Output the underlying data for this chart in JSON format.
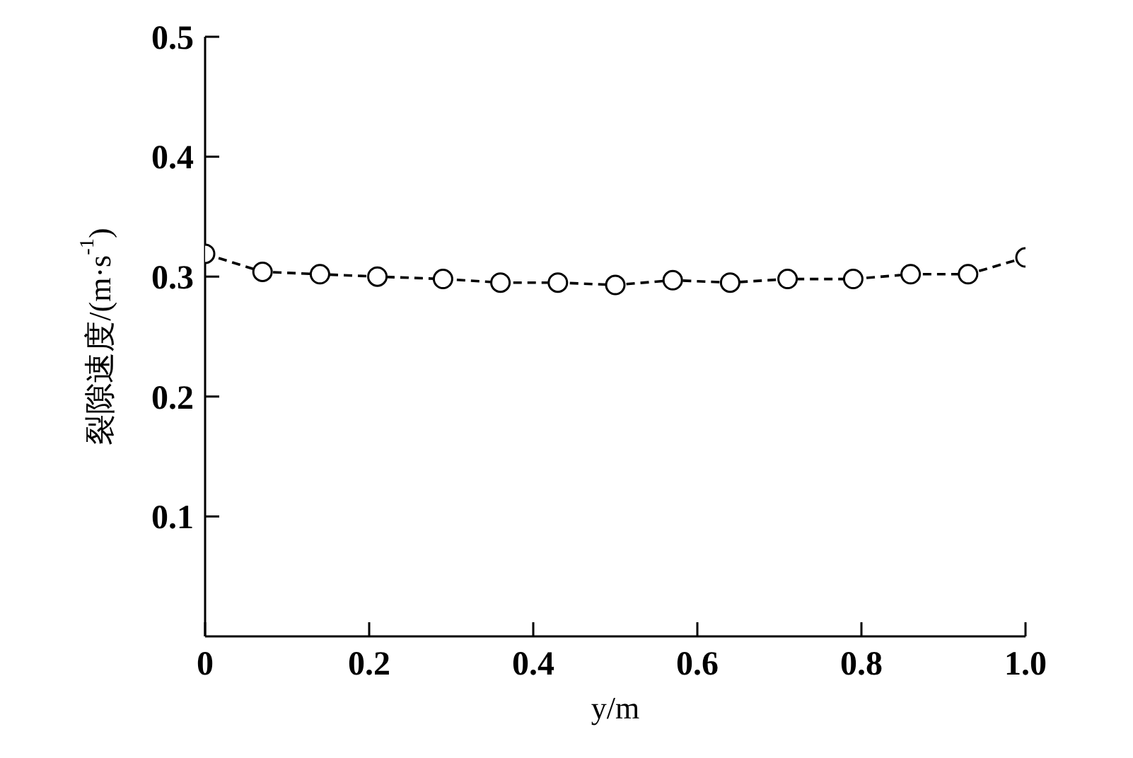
{
  "chart_data": {
    "type": "line",
    "xlabel": "y/m",
    "ylabel": "裂隙速度/(m·s$^{-1}$)",
    "x": [
      0,
      0.07,
      0.14,
      0.21,
      0.29,
      0.36,
      0.43,
      0.5,
      0.57,
      0.64,
      0.71,
      0.79,
      0.86,
      0.93,
      1
    ],
    "values": [
      0.319,
      0.304,
      0.302,
      0.3,
      0.298,
      0.295,
      0.295,
      0.293,
      0.297,
      0.295,
      0.298,
      0.298,
      0.302,
      0.302,
      0.316
    ],
    "color": "#000000",
    "marker": "circle",
    "line_style": "dashed",
    "xlim": [
      0,
      1
    ],
    "xticks": [
      0,
      0.2,
      0.4,
      0.6,
      0.8,
      {
        "value": 1,
        "label": "1.0"
      }
    ],
    "ylim": [
      0,
      0.5
    ],
    "yticks": [
      0.1,
      0.2,
      0.3,
      0.4,
      0.5
    ],
    "grid": false,
    "legend": false
  }
}
